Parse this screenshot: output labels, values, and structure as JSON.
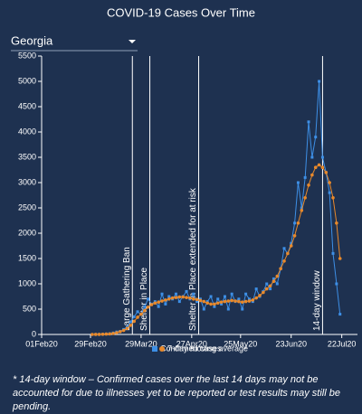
{
  "chart_data": {
    "type": "line",
    "title": "COVID-19 Cases Over Time",
    "selector": "Georgia",
    "x": [
      "2020-03-01",
      "2020-03-03",
      "2020-03-05",
      "2020-03-07",
      "2020-03-09",
      "2020-03-11",
      "2020-03-13",
      "2020-03-15",
      "2020-03-17",
      "2020-03-19",
      "2020-03-21",
      "2020-03-23",
      "2020-03-25",
      "2020-03-27",
      "2020-03-29",
      "2020-03-31",
      "2020-04-02",
      "2020-04-04",
      "2020-04-06",
      "2020-04-08",
      "2020-04-10",
      "2020-04-12",
      "2020-04-14",
      "2020-04-16",
      "2020-04-18",
      "2020-04-20",
      "2020-04-22",
      "2020-04-24",
      "2020-04-26",
      "2020-04-28",
      "2020-04-30",
      "2020-05-02",
      "2020-05-04",
      "2020-05-06",
      "2020-05-08",
      "2020-05-10",
      "2020-05-12",
      "2020-05-14",
      "2020-05-16",
      "2020-05-18",
      "2020-05-20",
      "2020-05-22",
      "2020-05-24",
      "2020-05-26",
      "2020-05-28",
      "2020-05-30",
      "2020-06-01",
      "2020-06-03",
      "2020-06-05",
      "2020-06-07",
      "2020-06-09",
      "2020-06-11",
      "2020-06-13",
      "2020-06-15",
      "2020-06-17",
      "2020-06-19",
      "2020-06-21",
      "2020-06-23",
      "2020-06-25",
      "2020-06-27",
      "2020-06-29",
      "2020-07-01",
      "2020-07-03",
      "2020-07-05",
      "2020-07-07",
      "2020-07-09",
      "2020-07-11",
      "2020-07-13",
      "2020-07-15",
      "2020-07-17",
      "2020-07-19",
      "2020-07-21"
    ],
    "series": [
      {
        "name": "Confirmed cases",
        "color": "#3d8fe6",
        "marker": "square",
        "values": [
          0,
          2,
          2,
          5,
          10,
          15,
          30,
          50,
          60,
          100,
          150,
          250,
          350,
          450,
          400,
          550,
          700,
          600,
          650,
          550,
          800,
          600,
          750,
          700,
          800,
          650,
          750,
          850,
          700,
          800,
          650,
          700,
          500,
          650,
          750,
          550,
          700,
          600,
          750,
          500,
          800,
          650,
          700,
          500,
          800,
          700,
          650,
          900,
          750,
          850,
          1000,
          900,
          1100,
          1000,
          1300,
          1700,
          1600,
          1800,
          2200,
          3000,
          2500,
          3100,
          4200,
          3500,
          3900,
          5000,
          3500,
          3200,
          2800,
          1600,
          1000,
          400
        ]
      },
      {
        "name": "7-day moving average",
        "color": "#e8892b",
        "marker": "circle",
        "values": [
          0,
          1,
          2,
          4,
          7,
          11,
          20,
          35,
          55,
          80,
          120,
          180,
          260,
          340,
          400,
          470,
          540,
          590,
          620,
          640,
          660,
          680,
          700,
          720,
          730,
          740,
          740,
          730,
          720,
          700,
          690,
          670,
          650,
          620,
          600,
          600,
          620,
          640,
          650,
          660,
          670,
          660,
          650,
          640,
          650,
          660,
          680,
          720,
          770,
          830,
          900,
          960,
          1050,
          1150,
          1300,
          1450,
          1600,
          1750,
          1950,
          2200,
          2450,
          2700,
          2950,
          3150,
          3300,
          3350,
          3300,
          3200,
          3000,
          2700,
          2200,
          1500
        ]
      }
    ],
    "xlim": [
      "2020-02-01",
      "2020-07-31"
    ],
    "xticks": [
      {
        "value": "2020-02-01",
        "label": "01Feb20"
      },
      {
        "value": "2020-02-29",
        "label": "29Feb20"
      },
      {
        "value": "2020-03-29",
        "label": "29Mar20"
      },
      {
        "value": "2020-04-27",
        "label": "27Apr20"
      },
      {
        "value": "2020-05-25",
        "label": "25May20"
      },
      {
        "value": "2020-06-23",
        "label": "23Jun20"
      },
      {
        "value": "2020-07-22",
        "label": "22Jul20"
      }
    ],
    "ylim": [
      0,
      5500
    ],
    "yticks": [
      0,
      500,
      1000,
      1500,
      2000,
      2500,
      3000,
      3500,
      4000,
      4500,
      5000,
      5500
    ],
    "events": [
      {
        "x": "2020-03-24",
        "label": "Large Gathering Ban"
      },
      {
        "x": "2020-04-03",
        "label": "Shelter in Place"
      },
      {
        "x": "2020-05-01",
        "label": "Shelter in Place extended for at risk"
      },
      {
        "x": "2020-07-11",
        "label": "14-day window"
      }
    ],
    "footnote": "* 14-day window – Confirmed cases over the last 14 days may not be accounted for due to illnesses yet to be reported or test results may still be pending."
  }
}
